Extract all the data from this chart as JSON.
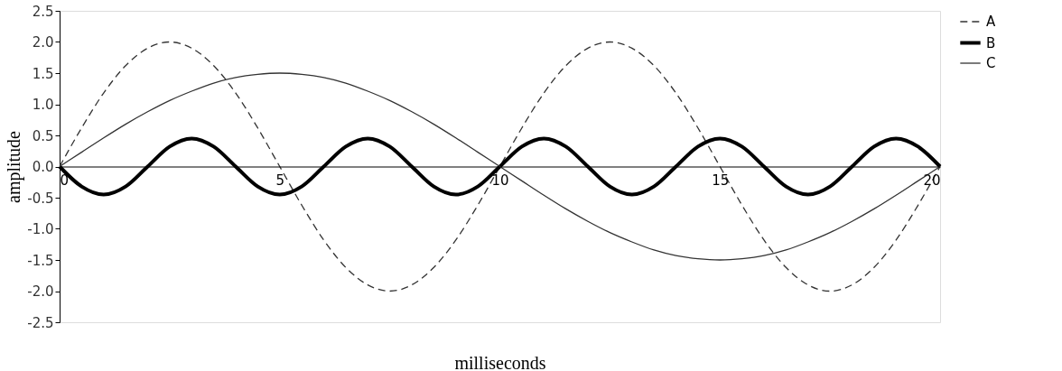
{
  "chart_data": {
    "type": "line",
    "xlabel": "milliseconds",
    "ylabel": "amplitude",
    "x": [
      0,
      0.5,
      1,
      1.5,
      2,
      2.5,
      3,
      3.5,
      4,
      4.5,
      5,
      5.5,
      6,
      6.5,
      7,
      7.5,
      8,
      8.5,
      9,
      9.5,
      10,
      10.5,
      11,
      11.5,
      12,
      12.5,
      13,
      13.5,
      14,
      14.5,
      15,
      15.5,
      16,
      16.5,
      17,
      17.5,
      18,
      18.5,
      19,
      19.5,
      20
    ],
    "series": [
      {
        "name": "A",
        "color": "#333333",
        "line_style": "dashed",
        "values": [
          0,
          0.62,
          1.18,
          1.62,
          1.9,
          2,
          1.9,
          1.62,
          1.18,
          0.62,
          0,
          -0.62,
          -1.18,
          -1.62,
          -1.9,
          -2,
          -1.9,
          -1.62,
          -1.18,
          -0.62,
          0,
          0.62,
          1.18,
          1.62,
          1.9,
          2,
          1.9,
          1.62,
          1.18,
          0.62,
          0,
          -0.62,
          -1.18,
          -1.62,
          -1.9,
          -2,
          -1.9,
          -1.62,
          -1.18,
          -0.62,
          0
        ]
      },
      {
        "name": "B",
        "color": "#000000",
        "line_style": "solid",
        "values": [
          0,
          -0.32,
          -0.45,
          -0.32,
          0,
          0.32,
          0.45,
          0.32,
          0,
          -0.32,
          -0.45,
          -0.32,
          0,
          0.32,
          0.45,
          0.32,
          0,
          -0.32,
          -0.45,
          -0.32,
          0,
          0.32,
          0.45,
          0.32,
          0,
          -0.32,
          -0.45,
          -0.32,
          0,
          0.32,
          0.45,
          0.32,
          0,
          -0.32,
          -0.45,
          -0.32,
          0,
          0.32,
          0.45,
          0.32,
          0
        ]
      },
      {
        "name": "C",
        "color": "#333333",
        "line_style": "solid",
        "values": [
          0,
          0.23,
          0.46,
          0.68,
          0.88,
          1.06,
          1.21,
          1.34,
          1.43,
          1.48,
          1.5,
          1.48,
          1.43,
          1.34,
          1.21,
          1.06,
          0.88,
          0.68,
          0.46,
          0.23,
          0,
          -0.23,
          -0.46,
          -0.68,
          -0.88,
          -1.06,
          -1.21,
          -1.34,
          -1.43,
          -1.48,
          -1.5,
          -1.48,
          -1.43,
          -1.34,
          -1.21,
          -1.06,
          -0.88,
          -0.68,
          -0.46,
          -0.23,
          0
        ]
      }
    ],
    "xlim": [
      0,
      20
    ],
    "xticks": [
      0,
      5,
      10,
      15,
      20
    ],
    "ylim": [
      -2.5,
      2.5
    ],
    "yticks": [
      {
        "value": -2.5,
        "label": "-2.5"
      },
      {
        "value": -2,
        "label": "-2.0"
      },
      {
        "value": -1.5,
        "label": "-1.5"
      },
      {
        "value": -1,
        "label": "-1.0"
      },
      {
        "value": -0.5,
        "label": "-0.5"
      },
      {
        "value": 0,
        "label": "0.0"
      },
      {
        "value": 0.5,
        "label": "0.5"
      },
      {
        "value": 1,
        "label": "1.0"
      },
      {
        "value": 1.5,
        "label": "1.5"
      },
      {
        "value": 2,
        "label": "2.0"
      },
      {
        "value": 2.5,
        "label": "2.5"
      }
    ],
    "grid": false,
    "legend": "right",
    "marker": "none"
  }
}
